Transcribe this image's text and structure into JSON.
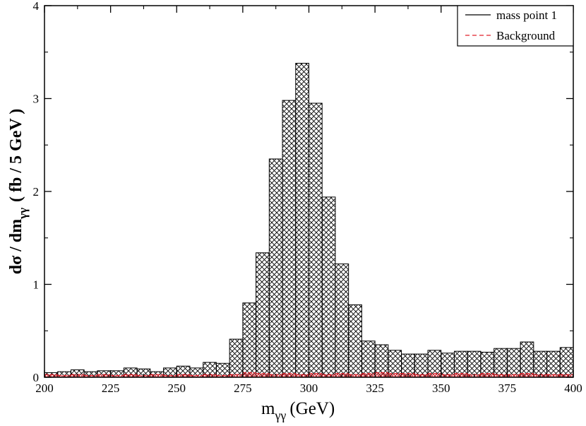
{
  "chart_data": {
    "type": "bar",
    "xlabel": "m",
    "xlabel_sub": "γγ",
    "xlabel_unit": "(GeV)",
    "ylabel_main": "dσ / dm",
    "ylabel_sub": "γγ",
    "ylabel_unit": "( fb / 5 GeV )",
    "xlim": [
      200,
      400
    ],
    "ylim": [
      0,
      4
    ],
    "x_ticks": [
      200,
      225,
      250,
      275,
      300,
      325,
      350,
      375,
      400
    ],
    "y_ticks": [
      0,
      1,
      2,
      3,
      4
    ],
    "legend_position": "top-right",
    "bin_width": 5,
    "series": [
      {
        "name": "mass point 1",
        "style": "solid black, crosshatch fill",
        "color": "#000000",
        "bin_edges": [
          200,
          205,
          210,
          215,
          220,
          225,
          230,
          235,
          240,
          245,
          250,
          255,
          260,
          265,
          270,
          275,
          280,
          285,
          290,
          295,
          300,
          305,
          310,
          315,
          320,
          325,
          330,
          335,
          340,
          345,
          350,
          355,
          360,
          365,
          370,
          375,
          380,
          385,
          390,
          395
        ],
        "values": [
          0.05,
          0.06,
          0.08,
          0.06,
          0.07,
          0.07,
          0.1,
          0.09,
          0.06,
          0.1,
          0.12,
          0.1,
          0.16,
          0.15,
          0.41,
          0.8,
          1.34,
          2.35,
          2.98,
          3.38,
          2.95,
          1.94,
          1.22,
          0.78,
          0.39,
          0.35,
          0.29,
          0.25,
          0.25,
          0.29,
          0.26,
          0.28,
          0.28,
          0.27,
          0.31,
          0.31,
          0.38,
          0.28,
          0.28,
          0.32
        ]
      },
      {
        "name": "Background",
        "style": "dashed red, red hatch fill",
        "color": "#e0202a",
        "bin_edges": [
          200,
          205,
          210,
          215,
          220,
          225,
          230,
          235,
          240,
          245,
          250,
          255,
          260,
          265,
          270,
          275,
          280,
          285,
          290,
          295,
          300,
          305,
          310,
          315,
          320,
          325,
          330,
          335,
          340,
          345,
          350,
          355,
          360,
          365,
          370,
          375,
          380,
          385,
          390,
          395
        ],
        "values": [
          0.03,
          0.02,
          0.03,
          0.02,
          0.03,
          0.02,
          0.03,
          0.02,
          0.03,
          0.02,
          0.03,
          0.02,
          0.03,
          0.02,
          0.03,
          0.05,
          0.04,
          0.03,
          0.04,
          0.03,
          0.04,
          0.03,
          0.04,
          0.03,
          0.04,
          0.05,
          0.04,
          0.04,
          0.03,
          0.04,
          0.03,
          0.04,
          0.03,
          0.04,
          0.03,
          0.03,
          0.04,
          0.03,
          0.03,
          0.03
        ]
      }
    ]
  }
}
